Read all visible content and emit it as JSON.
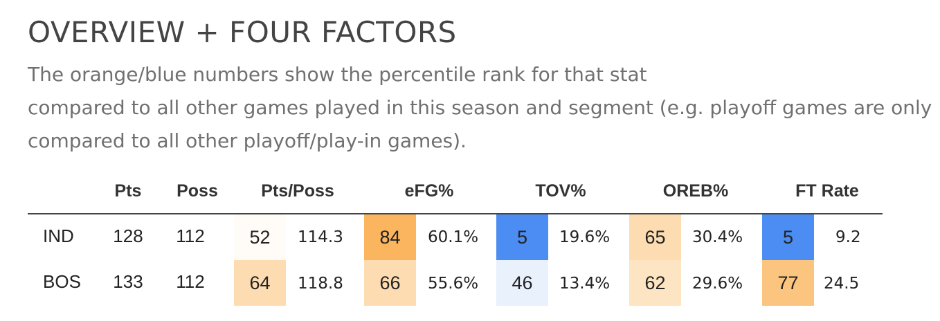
{
  "title": "OVERVIEW + FOUR FACTORS",
  "subtitle": [
    "The orange/blue numbers show the percentile rank for that stat",
    "compared to all other games played in this season and segment (e.g. playoff games are only",
    "compared to all other playoff/play-in games)."
  ],
  "table": {
    "headers": [
      "Pts",
      "Poss",
      "Pts/Poss",
      "eFG%",
      "TOV%",
      "OREB%",
      "FT Rate"
    ],
    "rows": [
      {
        "team": "IND",
        "pts": "128",
        "poss": "112",
        "pts_poss": {
          "rank": "52",
          "value": "114.3",
          "color": "#fffcf7"
        },
        "efg": {
          "rank": "84",
          "value": "60.1%",
          "color": "#fbb55e"
        },
        "tov": {
          "rank": "5",
          "value": "19.6%",
          "color": "#4b8df2"
        },
        "oreb": {
          "rank": "65",
          "value": "30.4%",
          "color": "#fddcb1"
        },
        "ft_rate": {
          "rank": "5",
          "value": "9.2",
          "color": "#4b8df2"
        }
      },
      {
        "team": "BOS",
        "pts": "133",
        "poss": "112",
        "pts_poss": {
          "rank": "64",
          "value": "118.8",
          "color": "#fddcb2"
        },
        "efg": {
          "rank": "66",
          "value": "55.6%",
          "color": "#fddcb1"
        },
        "tov": {
          "rank": "46",
          "value": "13.4%",
          "color": "#e9f1fd"
        },
        "oreb": {
          "rank": "62",
          "value": "29.6%",
          "color": "#fde4c3"
        },
        "ft_rate": {
          "rank": "77",
          "value": "24.5",
          "color": "#fbc57f"
        }
      }
    ]
  }
}
